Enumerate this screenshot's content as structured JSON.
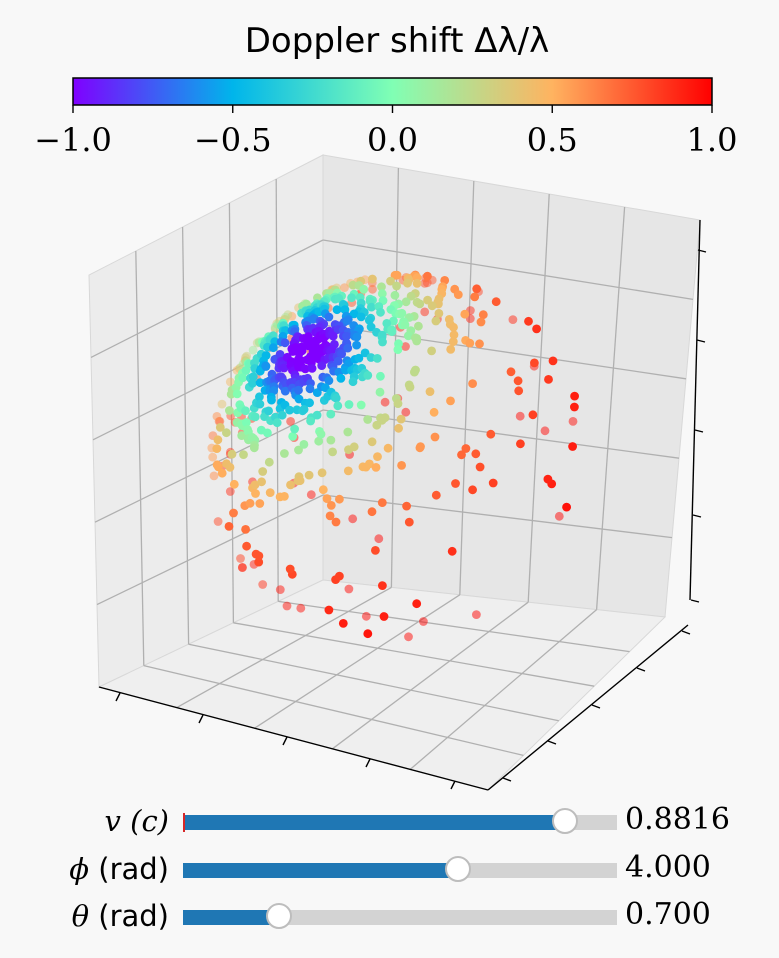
{
  "chart_data": {
    "type": "scatter",
    "projection": "3d",
    "title": "Doppler shift Δλ/λ",
    "colorbar": {
      "label": "Doppler shift Δλ/λ",
      "cmap": "rainbow",
      "range": [
        -1.0,
        1.0
      ],
      "ticks": [
        -1.0,
        -0.5,
        0.0,
        0.5,
        1.0
      ],
      "tick_labels": [
        "−1.0",
        "−0.5",
        "0.0",
        "0.5",
        "1.0"
      ],
      "stops": [
        "#8000ff",
        "#00b5eb",
        "#80ffb4",
        "#ffb360",
        "#ff0000"
      ],
      "placement": "top"
    },
    "points": "sphere of sample points colored by Doppler shift; front hemisphere (approaching) blue, receding side red",
    "axes": {
      "xlabel": "",
      "ylabel": "",
      "zlabel": "",
      "tick_labels_visible": false,
      "grid": true
    }
  },
  "sliders": [
    {
      "label_math": "v",
      "label_unit": "(c)",
      "value": 0.8816,
      "min": 0.0,
      "max": 1.0,
      "init": 0.0,
      "display": "0.8816"
    },
    {
      "label_math": "ϕ",
      "label_unit": "(rad)",
      "value": 4.0,
      "min": 0.0,
      "max": 6.283,
      "display": "4.000"
    },
    {
      "label_math": "θ",
      "label_unit": "(rad)",
      "value": 0.7,
      "min": 0.0,
      "max": 3.1416,
      "display": "0.700"
    }
  ]
}
